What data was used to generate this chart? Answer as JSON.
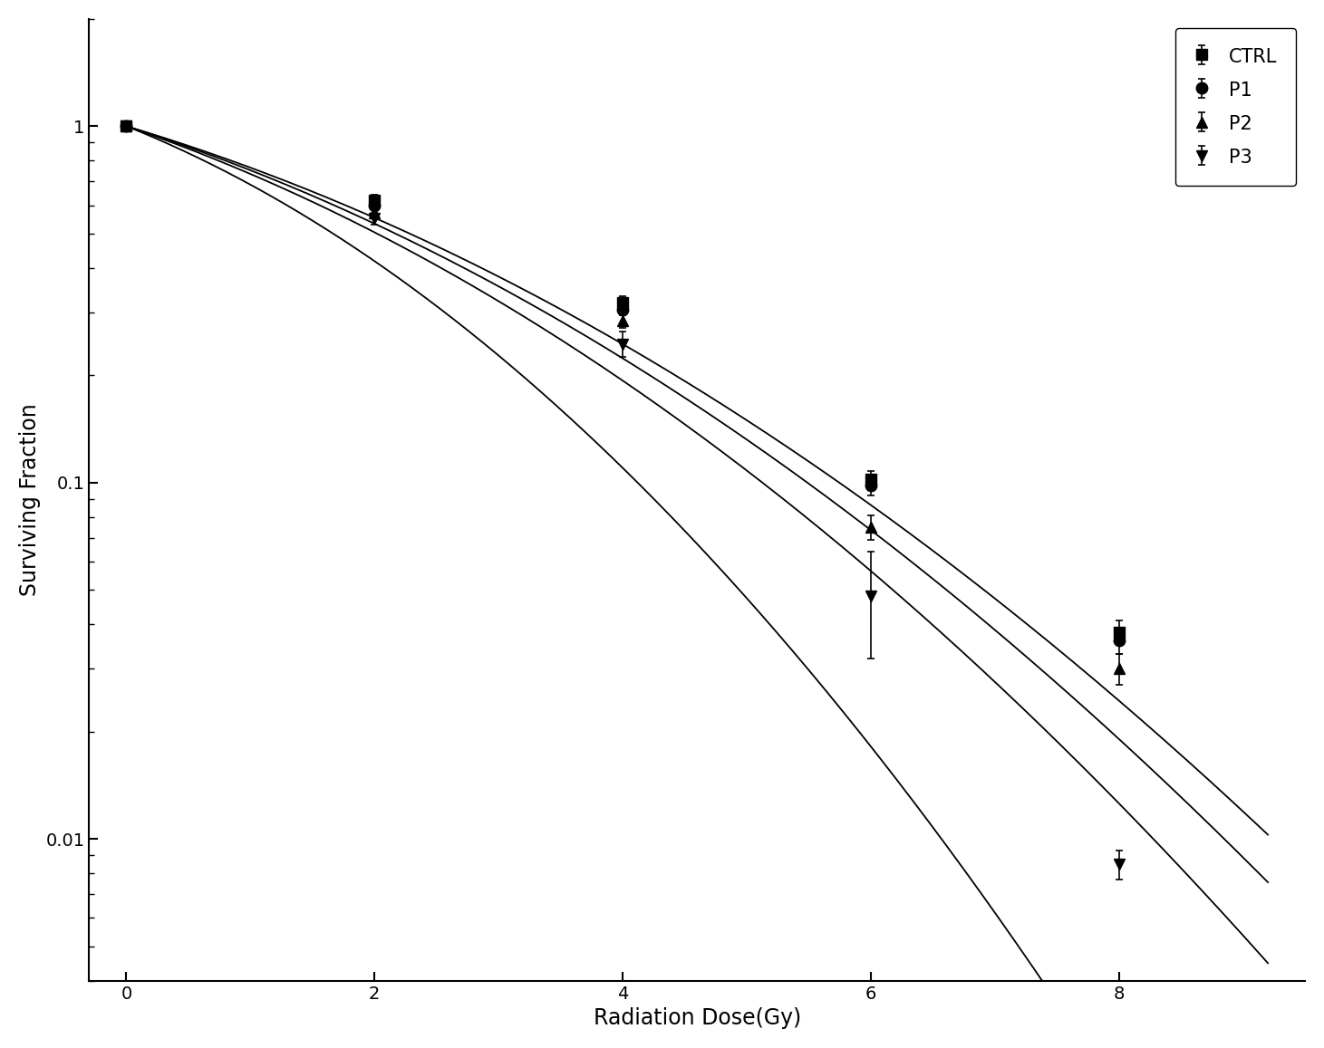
{
  "series": {
    "CTRL": {
      "x": [
        0,
        2,
        4,
        6,
        8
      ],
      "y": [
        1.0,
        0.62,
        0.32,
        0.102,
        0.038
      ],
      "yerr": [
        0.018,
        0.022,
        0.013,
        0.006,
        0.003
      ],
      "marker": "s",
      "label": "CTRL",
      "alpha_params": [
        0.24,
        0.028
      ]
    },
    "P1": {
      "x": [
        0,
        2,
        4,
        6,
        8
      ],
      "y": [
        1.0,
        0.6,
        0.305,
        0.098,
        0.036
      ],
      "yerr": [
        0.018,
        0.02,
        0.011,
        0.006,
        0.003
      ],
      "marker": "o",
      "label": "P1",
      "alpha_params": [
        0.255,
        0.03
      ]
    },
    "P2": {
      "x": [
        0,
        2,
        4,
        6,
        8
      ],
      "y": [
        1.0,
        0.57,
        0.285,
        0.075,
        0.03
      ],
      "yerr": [
        0.018,
        0.02,
        0.013,
        0.006,
        0.003
      ],
      "marker": "^",
      "label": "P2",
      "alpha_params": [
        0.275,
        0.034
      ]
    },
    "P3": {
      "x": [
        0,
        2,
        4,
        6,
        8
      ],
      "y": [
        1.0,
        0.55,
        0.245,
        0.048,
        0.0085
      ],
      "yerr": [
        0.015,
        0.022,
        0.02,
        0.016,
        0.0008
      ],
      "marker": "v",
      "label": "P3",
      "alpha_params": [
        0.32,
        0.058
      ]
    }
  },
  "xlabel": "Radiation Dose(Gy)",
  "ylabel": "Surviving Fraction",
  "xlim": [
    -0.3,
    9.5
  ],
  "ylim": [
    0.004,
    2.0
  ],
  "xticks": [
    0,
    2,
    4,
    6,
    8
  ],
  "background_color": "#ffffff",
  "marker_size": 9,
  "capsize": 3,
  "line_color": "#000000",
  "legend_fontsize": 15,
  "axis_fontsize": 17
}
